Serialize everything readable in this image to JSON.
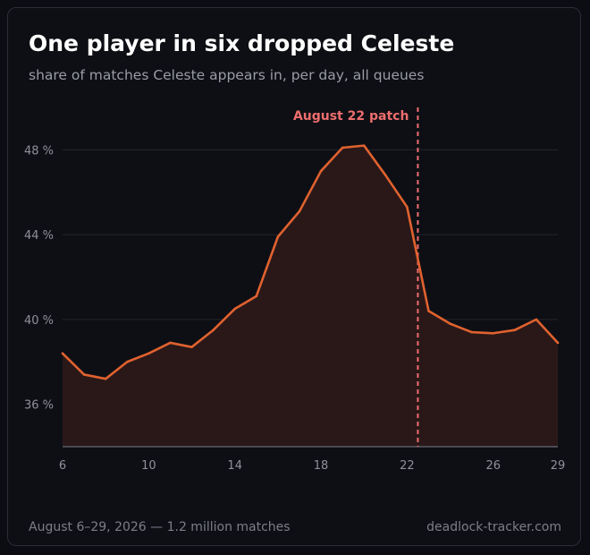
{
  "header": {
    "title": "One player in six dropped Celeste",
    "subtitle": "share of matches Celeste appears in, per day, all queues"
  },
  "footer": {
    "left": "August 6–29, 2026 — 1.2 million matches",
    "right": "deadlock-tracker.com"
  },
  "colors": {
    "line": "#e0622f",
    "area": "#2a1819",
    "annotation": "#ee6e6e",
    "grid": "#24252c",
    "axis": "#5a5c66"
  },
  "chart_data": {
    "type": "area",
    "x": [
      6,
      7,
      8,
      9,
      10,
      11,
      12,
      13,
      14,
      15,
      16,
      17,
      18,
      19,
      20,
      21,
      22,
      23,
      24,
      25,
      26,
      27,
      28,
      29
    ],
    "series": [
      {
        "values": [
          38.4,
          37.4,
          37.2,
          38.0,
          38.4,
          38.9,
          38.7,
          39.5,
          40.5,
          41.1,
          43.9,
          45.1,
          47.0,
          48.1,
          48.2,
          46.8,
          45.3,
          40.4,
          39.8,
          39.4,
          39.35,
          39.5,
          40.0,
          38.9
        ]
      }
    ],
    "xlim": [
      6,
      29
    ],
    "ylim": [
      34,
      50
    ],
    "xticks": [
      6,
      10,
      14,
      18,
      22,
      26,
      29
    ],
    "yticks": [
      36,
      40,
      44,
      48
    ],
    "ytick_suffix": " %",
    "grid": true,
    "annotations": [
      {
        "x": 22.5,
        "label": "August 22 patch",
        "style": "dashed-vertical"
      }
    ]
  }
}
